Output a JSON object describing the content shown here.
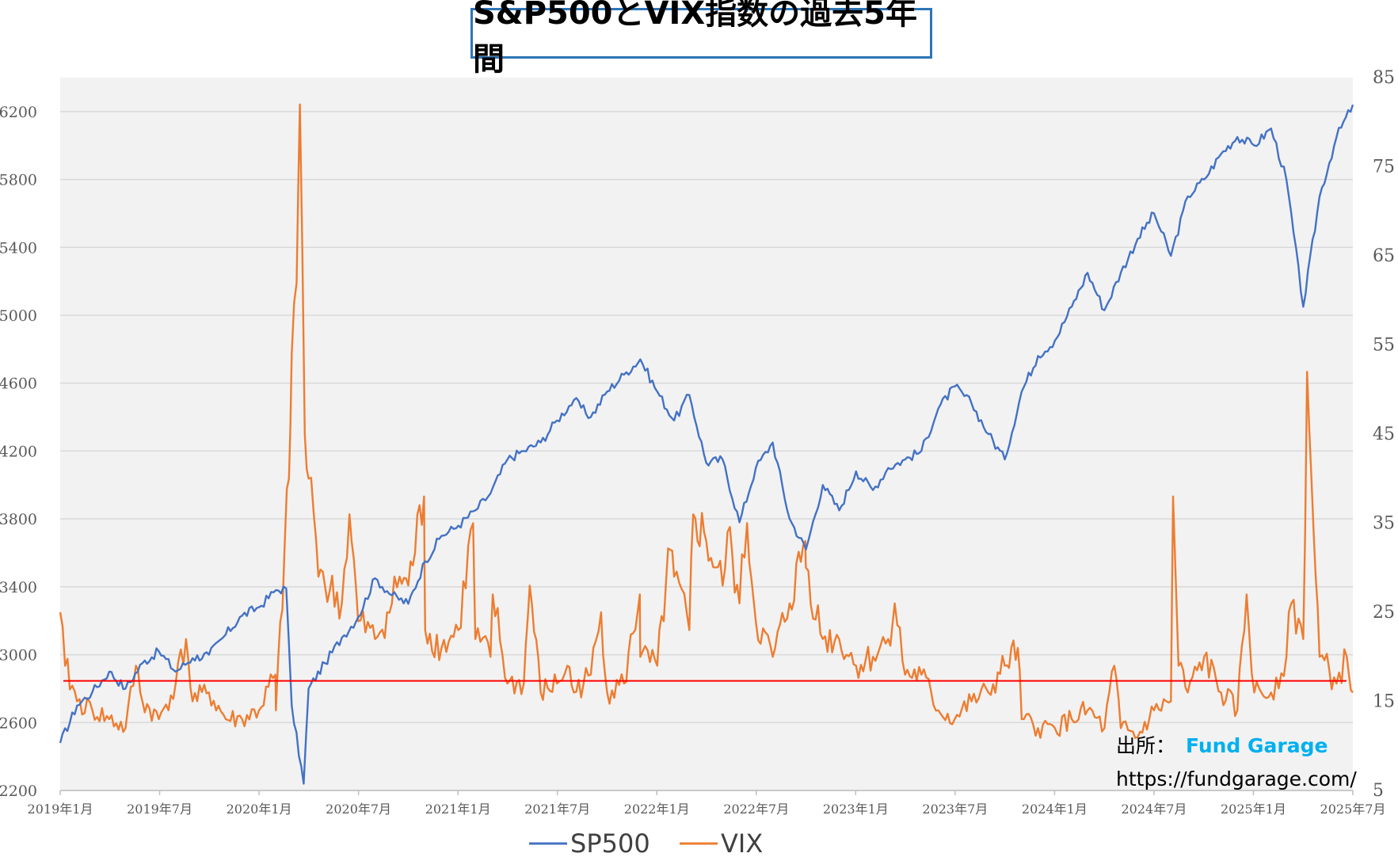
{
  "chart_data": {
    "type": "line",
    "title": "S&P500とVIX指数の過去5年間",
    "y_left": {
      "ticks": [
        "6200",
        "5800",
        "5400",
        "5000",
        "4600",
        "4200",
        "3800",
        "3400",
        "3000",
        "2600",
        "2200"
      ],
      "lim": [
        2200,
        6400
      ]
    },
    "y_right": {
      "ticks": [
        "85",
        "75",
        "65",
        "55",
        "45",
        "35",
        "25",
        "15",
        "5"
      ],
      "lim": [
        5,
        85
      ]
    },
    "x_ticks": [
      "2019年1月",
      "2019年7月",
      "2020年1月",
      "2020年7月",
      "2021年1月",
      "2021年7月",
      "2022年1月",
      "2022年7月",
      "2023年1月",
      "2023年7月",
      "2024年1月",
      "2024年7月",
      "2025年1月",
      "2025年7月"
    ],
    "x_range": [
      "2019-01",
      "2025-07"
    ],
    "reference_line": {
      "axis": "right",
      "value": 17.3,
      "color": "#ff0000"
    },
    "series": [
      {
        "name": "SP500",
        "axis": "left",
        "color": "#4472c4",
        "x": [
          "2019-01",
          "2019-02",
          "2019-03",
          "2019-04",
          "2019-05",
          "2019-06",
          "2019-07",
          "2019-08",
          "2019-09",
          "2019-10",
          "2019-11",
          "2019-12",
          "2020-01",
          "2020-02",
          "2020-02-20",
          "2020-03",
          "2020-03-23",
          "2020-04",
          "2020-05",
          "2020-06",
          "2020-07",
          "2020-08",
          "2020-09",
          "2020-10",
          "2020-11",
          "2020-12",
          "2021-01",
          "2021-02",
          "2021-03",
          "2021-04",
          "2021-05",
          "2021-06",
          "2021-07",
          "2021-08",
          "2021-09",
          "2021-10",
          "2021-11",
          "2021-12",
          "2022-01",
          "2022-02",
          "2022-03",
          "2022-04",
          "2022-05",
          "2022-06",
          "2022-07",
          "2022-08",
          "2022-09",
          "2022-10",
          "2022-11",
          "2022-12",
          "2023-01",
          "2023-02",
          "2023-03",
          "2023-04",
          "2023-05",
          "2023-06",
          "2023-07",
          "2023-08",
          "2023-09",
          "2023-10",
          "2023-11",
          "2023-12",
          "2024-01",
          "2024-02",
          "2024-03",
          "2024-04",
          "2024-05",
          "2024-06",
          "2024-07",
          "2024-08",
          "2024-09",
          "2024-10",
          "2024-11",
          "2024-12",
          "2025-01",
          "2025-02",
          "2025-03",
          "2025-04",
          "2025-05",
          "2025-06",
          "2025-07"
        ],
        "values": [
          2480,
          2700,
          2780,
          2900,
          2800,
          2950,
          3020,
          2900,
          2980,
          3000,
          3120,
          3230,
          3280,
          3380,
          3390,
          2700,
          2240,
          2800,
          2950,
          3100,
          3220,
          3450,
          3350,
          3300,
          3550,
          3700,
          3760,
          3850,
          3950,
          4150,
          4200,
          4250,
          4380,
          4500,
          4400,
          4550,
          4650,
          4740,
          4550,
          4380,
          4530,
          4130,
          4150,
          3780,
          4100,
          4250,
          3800,
          3620,
          4000,
          3850,
          4080,
          3970,
          4100,
          4150,
          4200,
          4450,
          4580,
          4480,
          4300,
          4150,
          4550,
          4760,
          4850,
          5050,
          5250,
          5030,
          5250,
          5450,
          5600,
          5350,
          5700,
          5800,
          5950,
          6050,
          6000,
          6100,
          5800,
          5050,
          5700,
          6050,
          6240
        ]
      },
      {
        "name": "VIX",
        "axis": "right",
        "color": "#ed7d31",
        "x": [
          "2019-01",
          "2019-01-10",
          "2019-02",
          "2019-03",
          "2019-04",
          "2019-05",
          "2019-05-20",
          "2019-06",
          "2019-07",
          "2019-08",
          "2019-08-20",
          "2019-09",
          "2019-10",
          "2019-11",
          "2019-12",
          "2020-01",
          "2020-01-31",
          "2020-02",
          "2020-02-25",
          "2020-03",
          "2020-03-10",
          "2020-03-16",
          "2020-03-25",
          "2020-04",
          "2020-04-15",
          "2020-05",
          "2020-06",
          "2020-06-15",
          "2020-07",
          "2020-08",
          "2020-09",
          "2020-09-15",
          "2020-10",
          "2020-10-30",
          "2020-11",
          "2020-12",
          "2021-01",
          "2021-01-28",
          "2021-02",
          "2021-03",
          "2021-03-05",
          "2021-04",
          "2021-05",
          "2021-05-12",
          "2021-06",
          "2021-07",
          "2021-07-20",
          "2021-08",
          "2021-09",
          "2021-09-20",
          "2021-10",
          "2021-11",
          "2021-11-30",
          "2021-12",
          "2022-01",
          "2022-01-25",
          "2022-02",
          "2022-03",
          "2022-03-08",
          "2022-04",
          "2022-05",
          "2022-05-10",
          "2022-06",
          "2022-06-15",
          "2022-07",
          "2022-08",
          "2022-09",
          "2022-09-30",
          "2022-10",
          "2022-11",
          "2022-12",
          "2023-01",
          "2023-02",
          "2023-03",
          "2023-03-13",
          "2023-04",
          "2023-05",
          "2023-06",
          "2023-07",
          "2023-08",
          "2023-09",
          "2023-10",
          "2023-10-25",
          "2023-11",
          "2023-12",
          "2024-01",
          "2024-02",
          "2024-03",
          "2024-04",
          "2024-04-19",
          "2024-05",
          "2024-06",
          "2024-07",
          "2024-08",
          "2024-08-05",
          "2024-08-15",
          "2024-09",
          "2024-10",
          "2024-11",
          "2024-12",
          "2024-12-18",
          "2025-01",
          "2025-02",
          "2025-03",
          "2025-03-10",
          "2025-04",
          "2025-04-08",
          "2025-04-20",
          "2025-05",
          "2025-06",
          "2025-06-20",
          "2025-07"
        ],
        "values": [
          25,
          19,
          15,
          14,
          13,
          12,
          19,
          15,
          13,
          17,
          22,
          15,
          16,
          13,
          13,
          14,
          18,
          14,
          40,
          54,
          62,
          82,
          45,
          40,
          33,
          28,
          26,
          36,
          24,
          22,
          26,
          29,
          28,
          38,
          23,
          21,
          23,
          35,
          22,
          20,
          27,
          17,
          17,
          28,
          16,
          17,
          19,
          16,
          18,
          25,
          16,
          17,
          27,
          20,
          19,
          32,
          29,
          23,
          36,
          33,
          28,
          34,
          26,
          35,
          24,
          20,
          26,
          33,
          30,
          22,
          22,
          19,
          20,
          22,
          26,
          18,
          18,
          14,
          13,
          15,
          16,
          19,
          21,
          13,
          12,
          12,
          13,
          14,
          12,
          19,
          12,
          11,
          14,
          15,
          38,
          19,
          16,
          20,
          16,
          14,
          27,
          16,
          16,
          20,
          26,
          22,
          52,
          34,
          20,
          17,
          20,
          16
        ]
      }
    ],
    "legend": {
      "position": "bottom",
      "items": [
        "SP500",
        "VIX"
      ]
    },
    "grid": true,
    "source_label": "出所：",
    "source_brand": "Fund Garage",
    "source_url": "https://fundgarage.com/"
  }
}
